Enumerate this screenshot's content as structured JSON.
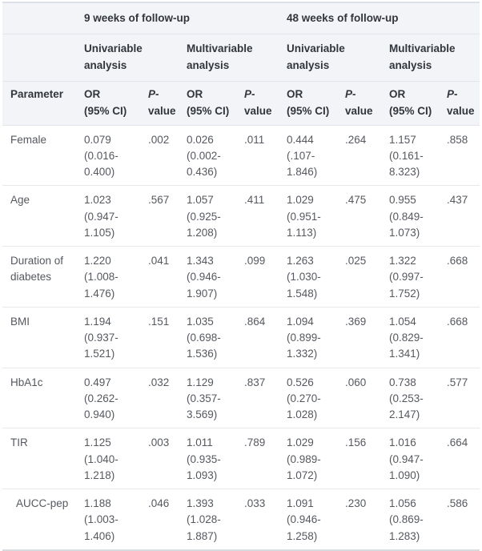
{
  "colors": {
    "header_bg": "#f3f4f7",
    "header_text": "#32363c",
    "body_text": "#55595f",
    "header_border": "#e1e4ea",
    "row_border": "#e6e8ea",
    "table_top_border": "#dce0e8",
    "table_bottom_border": "#d8dbde"
  },
  "table": {
    "follow_up_groups": [
      {
        "label": "9 weeks of follow-up",
        "colspan": 4
      },
      {
        "label": "48 weeks of follow-up",
        "colspan": 4
      }
    ],
    "analysis_groups": [
      {
        "label": "Univariable analysis"
      },
      {
        "label": "Multivariable analysis"
      },
      {
        "label": "Univariable analysis"
      },
      {
        "label": "Multivariable analysis"
      }
    ],
    "parameter_header": "Parameter",
    "or_header": "OR\n(95% CI)",
    "p_header_prefix": "P",
    "p_header_suffix": "-\nvalue",
    "rows": [
      {
        "parameter": "Female",
        "values": [
          "0.079\n(0.016-\n0.400)",
          ".002",
          "0.026\n(0.002-\n0.436)",
          ".011",
          "0.444\n(.107-\n1.846)",
          ".264",
          "1.157\n(0.161-\n8.323)",
          ".858"
        ]
      },
      {
        "parameter": "Age",
        "values": [
          "1.023\n(0.947-\n1.105)",
          ".567",
          "1.057\n(0.925-\n1.208)",
          ".411",
          "1.029\n(0.951-\n1.113)",
          ".475",
          "0.955\n(0.849-\n1.073)",
          ".437"
        ]
      },
      {
        "parameter": "Duration of diabetes",
        "values": [
          "1.220\n(1.008-\n1.476)",
          ".041",
          "1.343\n(0.946-\n1.907)",
          ".099",
          "1.263\n(1.030-\n1.548)",
          ".025",
          "1.322\n(0.997-\n1.752)",
          ".668"
        ]
      },
      {
        "parameter": "BMI",
        "values": [
          "1.194\n(0.937-\n1.521)",
          ".151",
          "1.035\n(0.698-\n1.536)",
          ".864",
          "1.094\n(0.899-\n1.332)",
          ".369",
          "1.054\n(0.829-\n1.341)",
          ".668"
        ]
      },
      {
        "parameter": "HbA1c",
        "values": [
          "0.497\n(0.262-\n0.940)",
          ".032",
          "1.129\n(0.357-\n3.569)",
          ".837",
          "0.526\n(0.270-\n1.028)",
          ".060",
          "0.738\n(0.253-\n2.147)",
          ".577"
        ]
      },
      {
        "parameter": "TIR",
        "values": [
          "1.125\n(1.040-\n1.218)",
          ".003",
          "1.011\n(0.935-\n1.093)",
          ".789",
          "1.029\n(0.989-\n1.072)",
          ".156",
          "1.016\n(0.947-\n1.090)",
          ".664"
        ]
      },
      {
        "parameter": "AUCC-pep",
        "indent": true,
        "values": [
          "1.188\n(1.003-\n1.406)",
          ".046",
          "1.393\n(1.028-\n1.887)",
          ".033",
          "1.091\n(0.946-\n1.258)",
          ".230",
          "1.056\n(0.869-\n1.283)",
          ".586"
        ]
      }
    ]
  }
}
